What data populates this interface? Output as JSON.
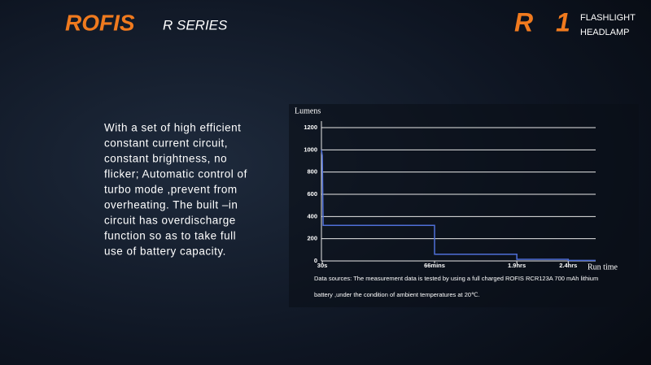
{
  "header": {
    "brand": "ROFIS",
    "series": "R SERIES",
    "model_r": "R",
    "model_num": "1",
    "tagline": [
      "FLASHLIGHT",
      "HEADLAMP"
    ]
  },
  "description": [
    "With a set of high efficient",
    "constant current circuit,",
    "constant brightness, no",
    "flicker; Automatic control of",
    "turbo mode ,prevent from",
    "overheating. The built –in",
    "circuit has overdischarge",
    "function so as to take full",
    "use of battery capacity."
  ],
  "chart_data": {
    "type": "line",
    "y_label": "Lumens",
    "x_label": "Run time",
    "x": [
      0,
      0.5,
      1,
      66,
      66,
      114,
      114,
      144,
      144,
      160
    ],
    "values": [
      1000,
      950,
      320,
      320,
      60,
      60,
      15,
      15,
      5,
      5
    ],
    "color": "#4f6fd8",
    "xlim": [
      0,
      160
    ],
    "xticks": [
      {
        "value": 0.5,
        "label": "30s"
      },
      {
        "value": 66,
        "label": "66mins"
      },
      {
        "value": 114,
        "label": "1.9hrs"
      },
      {
        "value": 144,
        "label": "2.4hrs"
      }
    ],
    "ylim": [
      0,
      1200
    ],
    "yticks": [
      0,
      200,
      400,
      600,
      800,
      1000,
      1200
    ],
    "grid": true,
    "note": [
      "Data sources: The measurement data is tested by using a full charged ROFIS RCR123A 700 mAh lithium",
      "battery ,under the condition of ambient temperatures at 20℃."
    ]
  }
}
